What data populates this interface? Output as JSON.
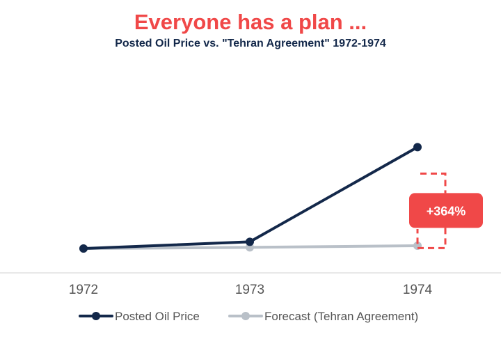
{
  "chart_data": {
    "type": "line",
    "title": "Everyone has a plan ...",
    "subtitle": "Posted Oil Price vs.  \"Tehran Agreement\" 1972-1974",
    "categories": [
      "1972",
      "1973",
      "1974"
    ],
    "series": [
      {
        "name": "Posted Oil Price",
        "values": [
          2.5,
          3.1,
          11.6
        ],
        "color": "#13284a"
      },
      {
        "name": "Forecast (Tehran Agreement)",
        "values": [
          2.5,
          2.6,
          2.75
        ],
        "color": "#b9c0c8"
      }
    ],
    "ylim": [
      0,
      20
    ],
    "grid": false,
    "legend": "bottom",
    "annotation": {
      "label": "+364%",
      "category": "1974",
      "color": "#f04848"
    }
  }
}
